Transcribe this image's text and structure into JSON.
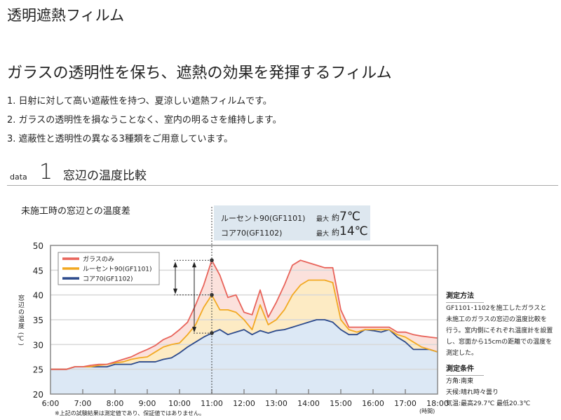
{
  "title": "透明遮熱フィルム",
  "headline": "ガラスの透明性を保ち、遮熱の効果を発揮するフィルム",
  "features": [
    "1.  日射に対して高い遮蔽性を持つ、夏涼しい遮熱フィルムです。",
    "2.  ガラスの透明性を損なうことなく、室内の明るさを維持します。",
    "3.  遮蔽性と透明性の異なる3種類をご用意しています。"
  ],
  "section": {
    "prefix": "data",
    "number": "1",
    "title": "窓辺の温度比較"
  },
  "info": {
    "rows": [
      {
        "name": "ルーセント90(GF1101)",
        "max": "最大",
        "approx": "約",
        "value": "7℃"
      },
      {
        "name": "コア70(GF1102)",
        "max": "最大",
        "approx": "約",
        "value": "14℃"
      }
    ]
  },
  "side": {
    "method_title": "測定方法",
    "method_lines": [
      "GF1101･1102を施工したガラスと",
      "未施工のガラスの窓辺の温度比較を",
      "行う。室内側にそれぞれ温度計を設置",
      "し、窓面から15cmの距離での温度を",
      "測定した。"
    ],
    "cond_title": "測定条件",
    "cond_lines": [
      "方角:南東",
      "天候:晴れ時々曇り",
      "気温:最高29.7℃  最低20.3℃"
    ]
  },
  "note": "※上記の試験結果は測定値であり、保証値ではありません。",
  "chart_data": {
    "type": "area",
    "title": "未施工時の窓辺との温度差",
    "ylabel": "窓辺の温度 (℃)",
    "xlabel": "(時間)",
    "ylim": [
      20,
      50
    ],
    "yticks": [
      "20",
      "25",
      "30",
      "35",
      "40",
      "45",
      "50"
    ],
    "xticks": [
      "6:00",
      "7:00",
      "8:00",
      "9:00",
      "10:00",
      "11:00",
      "12:00",
      "13:00",
      "14:00",
      "15:00",
      "16:00",
      "17:00",
      "18:00"
    ],
    "legend_position": "top-left",
    "x": [
      6,
      6.25,
      6.5,
      6.75,
      7,
      7.25,
      7.5,
      7.75,
      8,
      8.25,
      8.5,
      8.75,
      9,
      9.25,
      9.5,
      9.75,
      10,
      10.25,
      10.5,
      10.75,
      11,
      11.25,
      11.5,
      11.75,
      12,
      12.25,
      12.5,
      12.75,
      13,
      13.25,
      13.5,
      13.75,
      14,
      14.25,
      14.5,
      14.75,
      15,
      15.25,
      15.5,
      15.75,
      16,
      16.25,
      16.5,
      16.75,
      17,
      17.25,
      17.5,
      17.75,
      18
    ],
    "series": [
      {
        "name": "ガラスのみ",
        "color": "#e8635a",
        "fill": "#fbe1dc",
        "values": [
          25,
          25,
          25,
          25.5,
          25.5,
          25.8,
          26,
          26,
          26.5,
          27,
          27.5,
          28.3,
          29,
          29.8,
          31,
          31.7,
          33,
          34.5,
          38,
          42,
          47,
          44,
          39.5,
          40,
          36.5,
          36,
          41,
          35.5,
          38.5,
          42,
          46,
          47,
          46.5,
          46,
          45.5,
          45.5,
          37,
          33.5,
          33.5,
          33.5,
          33.5,
          33.5,
          33.5,
          32.5,
          32.5,
          32,
          31.7,
          31.5,
          31.3
        ]
      },
      {
        "name": "ルーセント90(GF1101)",
        "color": "#f2a922",
        "fill": "#fdebc4",
        "values": [
          25,
          25,
          25,
          25.5,
          25.5,
          25.5,
          25.8,
          26,
          26.3,
          26.5,
          27,
          27.3,
          27.5,
          28.5,
          29.5,
          30,
          30.3,
          32,
          34,
          37.5,
          40,
          37,
          37,
          36.5,
          35,
          33,
          38,
          34,
          35,
          37,
          40,
          42,
          43,
          43,
          43,
          42.5,
          35,
          33,
          32.5,
          33,
          33,
          33,
          33,
          32,
          31.5,
          30.5,
          29.5,
          29,
          28.5
        ]
      },
      {
        "name": "コア70(GF1102)",
        "color": "#2c4a8c",
        "fill": "#dce8f5",
        "values": [
          25,
          25,
          25,
          25.5,
          25.5,
          25.5,
          25.5,
          25.5,
          26,
          26,
          26,
          26.5,
          26.5,
          26.5,
          27,
          27.3,
          28.3,
          29.5,
          30.5,
          31.5,
          32.3,
          33,
          32,
          32.5,
          33,
          32,
          32.8,
          32.3,
          32.8,
          33,
          33.5,
          34,
          34.5,
          35,
          35,
          34.5,
          33,
          32,
          32,
          33,
          32.8,
          32.5,
          33,
          31.5,
          30.5,
          29,
          29,
          29,
          28.5
        ]
      }
    ],
    "annotation_time": 11
  }
}
